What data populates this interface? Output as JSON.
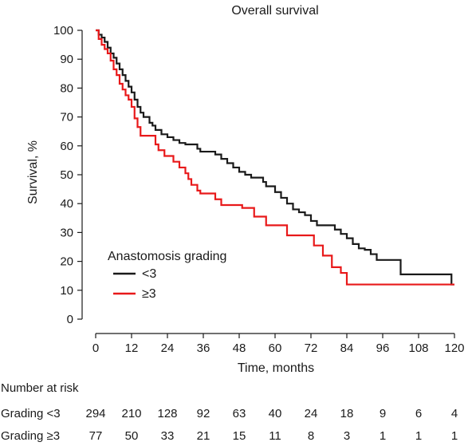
{
  "chart_data": {
    "type": "line",
    "title": "Overall survival",
    "xlabel": "Time, months",
    "ylabel": "Survival, %",
    "xlim": [
      0,
      120
    ],
    "ylim": [
      0,
      100
    ],
    "x_ticks": [
      0,
      12,
      24,
      36,
      48,
      60,
      72,
      84,
      96,
      108,
      120
    ],
    "y_ticks": [
      0,
      10,
      20,
      30,
      40,
      50,
      60,
      70,
      80,
      90,
      100
    ],
    "legend": {
      "title": "Anastomosis grading",
      "placement": "bottom-left"
    },
    "series": [
      {
        "name": "<3",
        "color": "#1a1a1a",
        "steps": [
          [
            0,
            100
          ],
          [
            1,
            98.5
          ],
          [
            2,
            97.5
          ],
          [
            3,
            96
          ],
          [
            4,
            94
          ],
          [
            5,
            92
          ],
          [
            6,
            90.5
          ],
          [
            7,
            88.5
          ],
          [
            8,
            86.5
          ],
          [
            9,
            84.5
          ],
          [
            10,
            82.5
          ],
          [
            11,
            80.5
          ],
          [
            12,
            78.5
          ],
          [
            13,
            76
          ],
          [
            14,
            73.5
          ],
          [
            15,
            71.5
          ],
          [
            16,
            70
          ],
          [
            18,
            68
          ],
          [
            19,
            67
          ],
          [
            20,
            65.5
          ],
          [
            22,
            64
          ],
          [
            24,
            63
          ],
          [
            26,
            62
          ],
          [
            28,
            61
          ],
          [
            30,
            60.5
          ],
          [
            34,
            59
          ],
          [
            35,
            58
          ],
          [
            40,
            57
          ],
          [
            42,
            55.5
          ],
          [
            44,
            54
          ],
          [
            46,
            52.5
          ],
          [
            48,
            51
          ],
          [
            50,
            50
          ],
          [
            52,
            49
          ],
          [
            56,
            47.5
          ],
          [
            57,
            46
          ],
          [
            60,
            44
          ],
          [
            62,
            42
          ],
          [
            64,
            40
          ],
          [
            66,
            38
          ],
          [
            68,
            37
          ],
          [
            70,
            36
          ],
          [
            72,
            34
          ],
          [
            74,
            32.5
          ],
          [
            80,
            31
          ],
          [
            82,
            29.5
          ],
          [
            84,
            28
          ],
          [
            86,
            26
          ],
          [
            88,
            24.5
          ],
          [
            90,
            24
          ],
          [
            92,
            22.5
          ],
          [
            94,
            20.5
          ],
          [
            102,
            15.5
          ],
          [
            119,
            12
          ]
        ],
        "end": 120
      },
      {
        "name": "≥3",
        "color": "#e8191a",
        "steps": [
          [
            0,
            100
          ],
          [
            1,
            97
          ],
          [
            2,
            95
          ],
          [
            3,
            93.5
          ],
          [
            4,
            92
          ],
          [
            5,
            89.5
          ],
          [
            6,
            86.5
          ],
          [
            7,
            84.5
          ],
          [
            8,
            81.5
          ],
          [
            9,
            79.5
          ],
          [
            10,
            77.5
          ],
          [
            11,
            76
          ],
          [
            12,
            73.5
          ],
          [
            13,
            69.5
          ],
          [
            14,
            66.5
          ],
          [
            15,
            63.5
          ],
          [
            20,
            60.5
          ],
          [
            21,
            58.5
          ],
          [
            23,
            56.5
          ],
          [
            26,
            54.5
          ],
          [
            28,
            52.5
          ],
          [
            30,
            50.5
          ],
          [
            31,
            48.5
          ],
          [
            32,
            46.5
          ],
          [
            34,
            44.5
          ],
          [
            35,
            43.5
          ],
          [
            40,
            41.5
          ],
          [
            42,
            39.5
          ],
          [
            49,
            38.5
          ],
          [
            53,
            35.5
          ],
          [
            57,
            32.5
          ],
          [
            64,
            29
          ],
          [
            73,
            25.5
          ],
          [
            76,
            22
          ],
          [
            79,
            18
          ],
          [
            82,
            16
          ],
          [
            84,
            12
          ]
        ],
        "end": 120
      }
    ],
    "risk_table": {
      "header": "Number at risk",
      "times": [
        0,
        12,
        24,
        36,
        48,
        60,
        72,
        84,
        96,
        108,
        120
      ],
      "rows": [
        {
          "label": "Grading <3",
          "values": [
            294,
            210,
            128,
            92,
            63,
            40,
            24,
            18,
            9,
            6,
            4
          ]
        },
        {
          "label": "Grading ≥3",
          "values": [
            77,
            50,
            33,
            21,
            15,
            11,
            8,
            3,
            1,
            1,
            1
          ]
        }
      ]
    }
  }
}
